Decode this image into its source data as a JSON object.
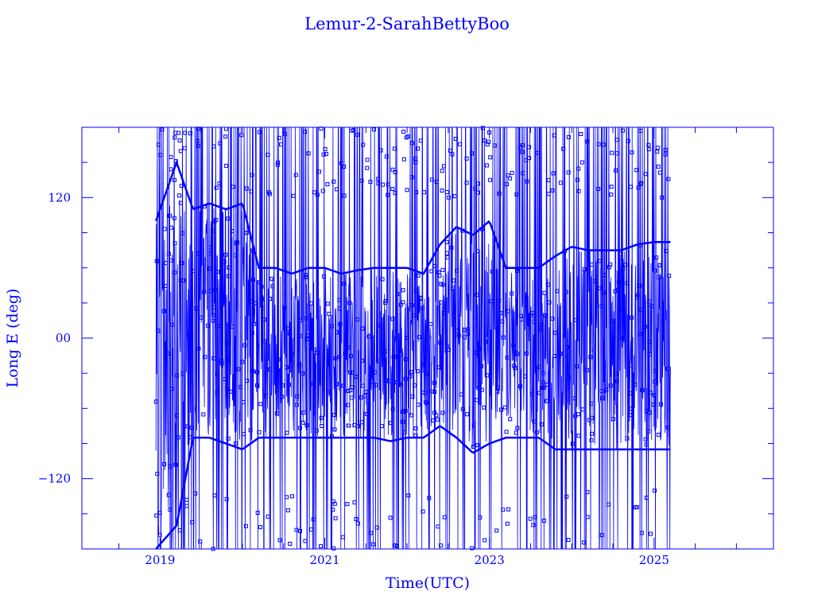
{
  "chart_data": {
    "type": "line",
    "title": "Lemur-2-SarahBettyBoo",
    "xlabel": "Time(UTC)",
    "ylabel": "Long E (deg)",
    "xlim": [
      2018.05,
      2026.45
    ],
    "ylim": [
      -180,
      180
    ],
    "x_major_ticks": [
      2019,
      2021,
      2023,
      2025
    ],
    "x_minor_ticks": [
      2018.5,
      2019.5,
      2020,
      2020.5,
      2021.5,
      2022,
      2022.5,
      2023.5,
      2024,
      2024.5,
      2025.5,
      2026
    ],
    "y_major_ticks": [
      -120,
      0,
      120
    ],
    "y_tick_labels": [
      "−120",
      "00",
      "120"
    ],
    "y_minor_step": 30,
    "grid": false,
    "legend": "none",
    "color": "#0000ff",
    "data_range": [
      2018.95,
      2025.2
    ],
    "series": [
      {
        "x": [
          2018.95,
          2019.2,
          2019.4,
          2019.6,
          2019.8,
          2020.0,
          2020.2,
          2020.4,
          2020.6,
          2020.8,
          2021.0,
          2021.2,
          2021.4,
          2021.6,
          2021.8,
          2022.0,
          2022.2,
          2022.4,
          2022.6,
          2022.8,
          2023.0,
          2023.2,
          2023.4,
          2023.6,
          2023.8,
          2024.0,
          2024.2,
          2024.4,
          2024.6,
          2024.8,
          2025.0,
          2025.2
        ],
        "upper": [
          100,
          150,
          110,
          115,
          110,
          115,
          60,
          60,
          55,
          60,
          60,
          55,
          58,
          60,
          60,
          60,
          55,
          80,
          95,
          88,
          100,
          60,
          60,
          60,
          70,
          78,
          75,
          75,
          75,
          80,
          82,
          82
        ],
        "lower": [
          -180,
          -160,
          -85,
          -85,
          -90,
          -95,
          -85,
          -85,
          -85,
          -85,
          -85,
          -85,
          -85,
          -85,
          -88,
          -85,
          -85,
          -75,
          -85,
          -98,
          -90,
          -85,
          -85,
          -85,
          -95,
          -95,
          -95,
          -95,
          -95,
          -95,
          -95,
          -95
        ]
      }
    ]
  }
}
